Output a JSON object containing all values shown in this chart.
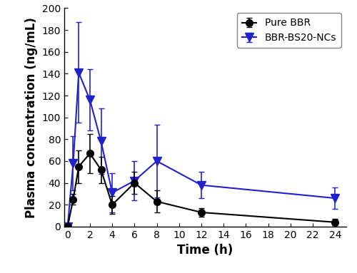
{
  "time": [
    0,
    0.5,
    1,
    2,
    3,
    4,
    6,
    8,
    12,
    24
  ],
  "pure_bbr_mean": [
    0,
    25,
    55,
    67,
    52,
    20,
    40,
    23,
    13,
    4
  ],
  "pure_bbr_err": [
    0,
    5,
    15,
    18,
    12,
    8,
    10,
    10,
    4,
    3
  ],
  "ncs_mean": [
    0,
    58,
    141,
    116,
    78,
    31,
    42,
    60,
    38,
    26
  ],
  "ncs_err": [
    0,
    25,
    46,
    28,
    30,
    18,
    18,
    33,
    12,
    10
  ],
  "xlabel": "Time (h)",
  "ylabel": "Plasma concentration (ng/mL)",
  "xlim": [
    -0.3,
    25
  ],
  "ylim": [
    0,
    200
  ],
  "xticks": [
    0,
    2,
    4,
    6,
    8,
    10,
    12,
    14,
    16,
    18,
    20,
    22,
    24
  ],
  "yticks": [
    0,
    20,
    40,
    60,
    80,
    100,
    120,
    140,
    160,
    180,
    200
  ],
  "pure_bbr_color": "#000000",
  "ncs_color": "#2222cc",
  "pure_bbr_label": "Pure BBR",
  "ncs_label": "BBR-BS20-NCs",
  "linewidth": 1.5,
  "markersize": 7,
  "capsize": 3,
  "legend_loc": "upper right",
  "legend_fontsize": 10,
  "axis_label_fontsize": 12,
  "tick_fontsize": 10,
  "background_color": "#ffffff"
}
